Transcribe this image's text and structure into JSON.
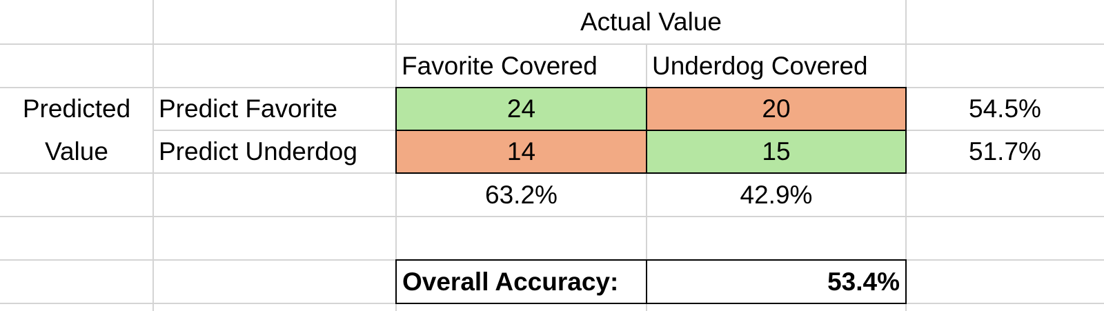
{
  "table": {
    "header": "Actual Value",
    "columns": [
      "Favorite Covered",
      "Underdog Covered"
    ],
    "row_header": "Predicted Value",
    "rows": [
      {
        "label": "Predict Favorite",
        "values": [
          24,
          20
        ],
        "row_rate": "54.5%"
      },
      {
        "label": "Predict Underdog",
        "values": [
          14,
          15
        ],
        "row_rate": "51.7%"
      }
    ],
    "column_rates": [
      "63.2%",
      "42.9%"
    ],
    "overall": {
      "label": "Overall Accuracy:",
      "value": "53.4%"
    }
  }
}
